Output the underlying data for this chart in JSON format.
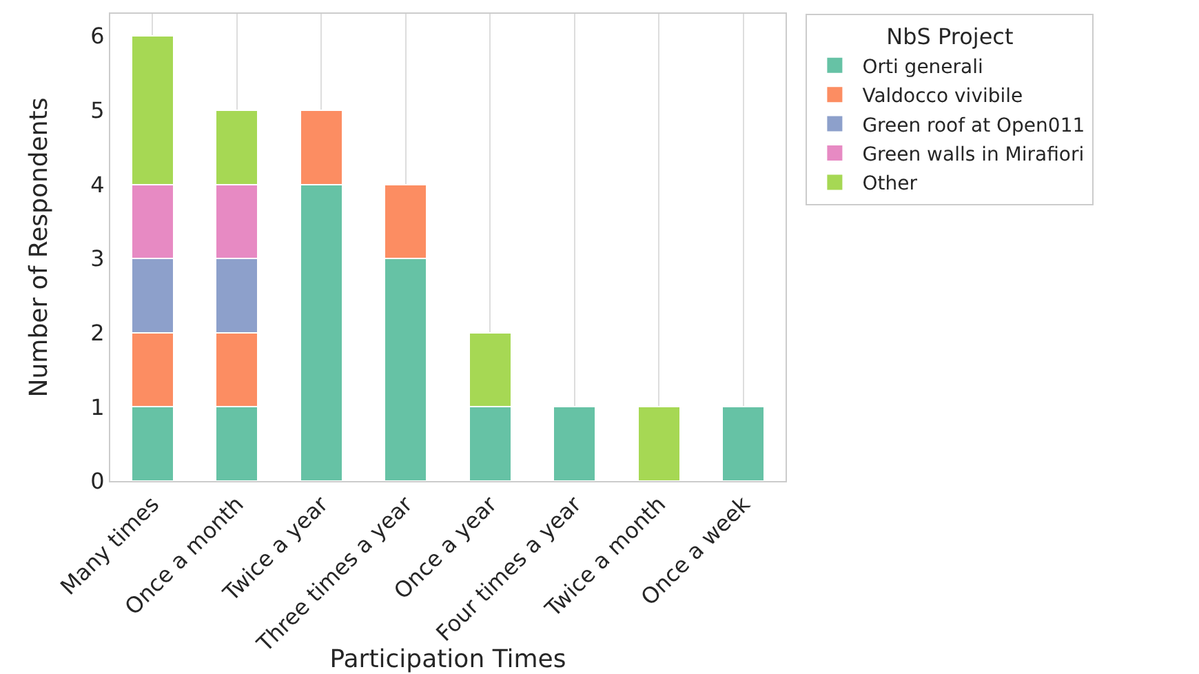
{
  "chart_data": {
    "type": "bar",
    "stacked": true,
    "xlabel": "Participation Times",
    "ylabel": "Number of Respondents",
    "legend_title": "NbS Project",
    "legend": "top right",
    "categories": [
      "Many times",
      "Once a month",
      "Twice a year",
      "Three times a year",
      "Once a year",
      "Four times a year",
      "Twice a month",
      "Once a week"
    ],
    "series": [
      {
        "name": "Orti generali",
        "color": "#66c2a5",
        "values": [
          1,
          1,
          4,
          3,
          1,
          1,
          0,
          1
        ]
      },
      {
        "name": "Valdocco vivibile",
        "color": "#fc8d62",
        "values": [
          1,
          1,
          1,
          1,
          0,
          0,
          0,
          0
        ]
      },
      {
        "name": "Green roof at Open011",
        "color": "#8da0cb",
        "values": [
          1,
          1,
          0,
          0,
          0,
          0,
          0,
          0
        ]
      },
      {
        "name": "Green walls in Mirafiori",
        "color": "#e78ac3",
        "values": [
          1,
          1,
          0,
          0,
          0,
          0,
          0,
          0
        ]
      },
      {
        "name": "Other",
        "color": "#a6d854",
        "values": [
          2,
          1,
          0,
          0,
          1,
          0,
          1,
          0
        ]
      }
    ],
    "ylim": [
      0,
      6.3
    ],
    "yticks": [
      0,
      1,
      2,
      3,
      4,
      5,
      6
    ],
    "grid": "x"
  }
}
